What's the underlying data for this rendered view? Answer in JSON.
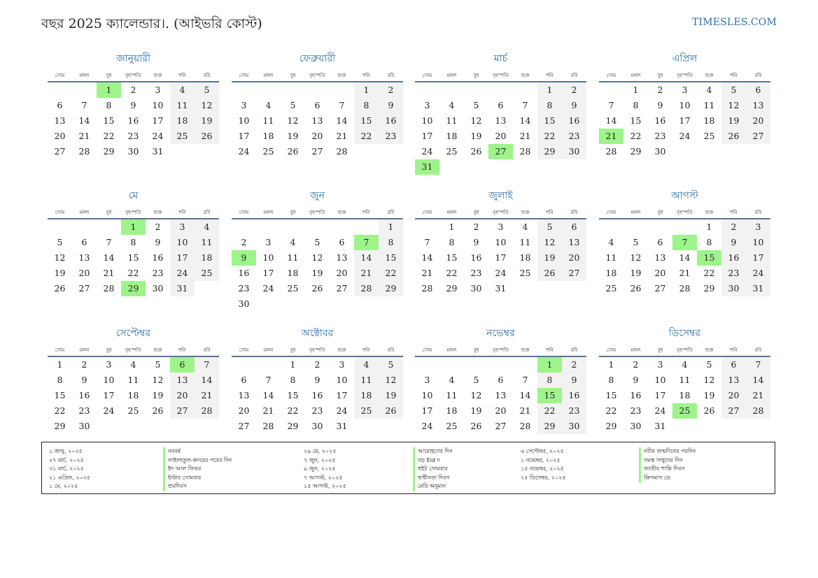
{
  "header": {
    "title": "বছর 2025 ক্যালেন্ডার।. (আইভরি কোস্ট)",
    "site": "TIMESLES.COM"
  },
  "weekdays": [
    "সোম",
    "মঙ্গল",
    "বুধ",
    "বৃহস্পতি",
    "শুক্র",
    "শনি",
    "রবি"
  ],
  "months": [
    {
      "name": "জানুয়ারী",
      "start": 2,
      "days": 31,
      "holidays": [
        1
      ]
    },
    {
      "name": "ফেব্রুয়ারী",
      "start": 5,
      "days": 28,
      "holidays": []
    },
    {
      "name": "মার্চ",
      "start": 5,
      "days": 31,
      "holidays": [
        27,
        31
      ]
    },
    {
      "name": "এপ্রিল",
      "start": 1,
      "days": 30,
      "holidays": [
        21
      ]
    },
    {
      "name": "মে",
      "start": 3,
      "days": 31,
      "holidays": [
        1,
        29
      ]
    },
    {
      "name": "জুন",
      "start": 6,
      "days": 30,
      "holidays": [
        7,
        9
      ]
    },
    {
      "name": "জুলাই",
      "start": 1,
      "days": 31,
      "holidays": []
    },
    {
      "name": "আগস্ট",
      "start": 4,
      "days": 31,
      "holidays": [
        7,
        15
      ]
    },
    {
      "name": "সেপ্টেম্বর",
      "start": 0,
      "days": 30,
      "holidays": [
        6
      ]
    },
    {
      "name": "অক্টোবর",
      "start": 2,
      "days": 31,
      "holidays": []
    },
    {
      "name": "নভেম্বর",
      "start": 5,
      "days": 30,
      "holidays": [
        1,
        15
      ]
    },
    {
      "name": "ডিসেম্বর",
      "start": 0,
      "days": 31,
      "holidays": [
        25
      ]
    }
  ],
  "legend": [
    {
      "date": "১ জানু, ২০২৫",
      "name": "নববর্ষ"
    },
    {
      "date": "২৭ মার্চ, ২০২৫",
      "name": "লাইলাতুল-কদরের পরের দিন"
    },
    {
      "date": "৩১ মার্চ, ২০২৫",
      "name": "ইদ আল ফিতর"
    },
    {
      "date": "২১ এপ্রিল, ২০২৫",
      "name": "ইস্টার সোমবার"
    },
    {
      "date": "১ মে, ২০২৫",
      "name": "শ্রমদিবস"
    },
    {
      "date": "২৯ মে, ২০২৫",
      "name": "আরোহণের দিন"
    },
    {
      "date": "৭ জুন, ২০২৫",
      "name": "বড় Eid দ"
    },
    {
      "date": "৯ জুন, ২০২৫",
      "name": "হুইট সোমবার"
    },
    {
      "date": "৭ আগস্ট, ২০২৫",
      "name": "স্বাধীনতা দিবস"
    },
    {
      "date": "১৫ আগস্ট, ২০২৫",
      "name": "মেরি অনুমান"
    },
    {
      "date": "৬ সেপ্টেম্বর, ২০২৫",
      "name": "নবীর জন্মদিনের পরদিন"
    },
    {
      "date": "১ নভেম্বর, ২০২৫",
      "name": "সমস্ত সাধুদের দিন"
    },
    {
      "date": "১৫ নভেম্বর, ২০২৫",
      "name": "জাতীয় শান্তি দিবস"
    },
    {
      "date": "২৫ ডিসেম্বর, ২০২৫",
      "name": "ক্রিসমাস ডে"
    }
  ]
}
